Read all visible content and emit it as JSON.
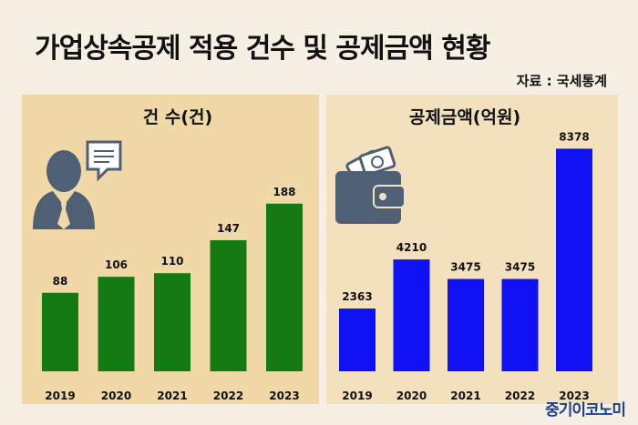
{
  "page": {
    "title": "가업상속공제 적용 건수 및 공제금액 현황",
    "source": "자료 : 국세통계",
    "brand": "중기이코노미"
  },
  "colors": {
    "background": "#f5efe4",
    "panel_left": "#f0d9a6",
    "panel_right": "#f3e0bd",
    "bar_count": "#157a12",
    "bar_amount": "#1010f5",
    "icon": "#4f5f76"
  },
  "icons": [
    "businessman-speech-bubble-icon",
    "wallet-money-icon"
  ],
  "chart_data": [
    {
      "type": "bar",
      "title": "건 수(건)",
      "categories": [
        "2019",
        "2020",
        "2021",
        "2022",
        "2023"
      ],
      "values": [
        88,
        106,
        110,
        147,
        188
      ],
      "grid": false
    },
    {
      "type": "bar",
      "title": "공제금액(억원)",
      "categories": [
        "2019",
        "2020",
        "2021",
        "2022",
        "2023"
      ],
      "values": [
        2363,
        4210,
        3475,
        3475,
        8378
      ],
      "grid": false
    }
  ]
}
